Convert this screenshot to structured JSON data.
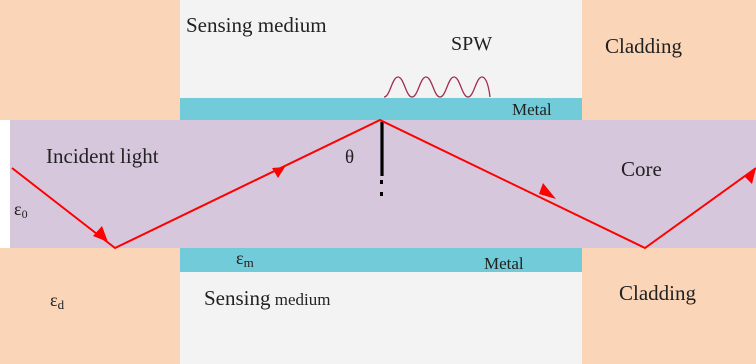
{
  "labels": {
    "sensing_medium_top": "Sensing medium",
    "spw": "SPW",
    "cladding_top": "Cladding",
    "metal_top": "Metal",
    "incident_light": "Incident light",
    "theta": "θ",
    "core": "Core",
    "epsilon_zero": "ε",
    "epsilon_zero_sub": "0",
    "epsilon_m": "ε",
    "epsilon_m_sub": "m",
    "metal_bottom": "Metal",
    "epsilon_d": "ε",
    "epsilon_d_sub": "d",
    "sensing_medium_bottom_prefix": "Sensing",
    "sensing_medium_bottom_suffix": " medium",
    "cladding_bottom": "Cladding"
  },
  "colors": {
    "cladding": "#fad5b8",
    "core": "#d7c7dc",
    "metal": "#72cbd9",
    "sensing": "#f3f3f3",
    "ray": "#ff0000",
    "wave": "#a03050",
    "text": "#222222",
    "normal_line": "#000000"
  }
}
